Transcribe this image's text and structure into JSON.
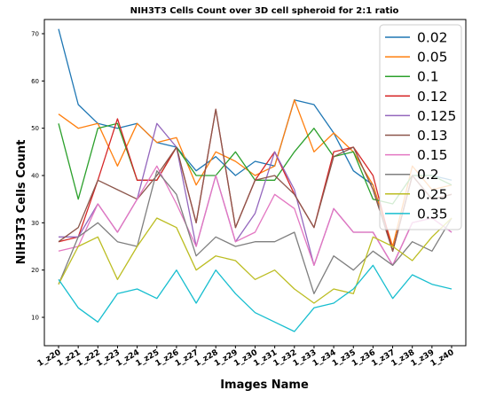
{
  "chart_data": {
    "type": "line",
    "title": "NIH3T3 Cells Count over 3D cell spheroid for 2:1 ratio",
    "xlabel": "Images Name",
    "ylabel": "NIH3T3 Cells Count",
    "categories": [
      "1_z20",
      "1_z21",
      "1_z22",
      "1_z23",
      "1_z24",
      "1_z25",
      "1_z26",
      "1_z27",
      "1_z28",
      "1_z29",
      "1_z30",
      "1_z31",
      "1_z32",
      "1_z33",
      "1_z34",
      "1_z35",
      "1_z36",
      "1_z37",
      "1_z38",
      "1_z39",
      "1_z40"
    ],
    "yticks": [
      10,
      20,
      30,
      40,
      50,
      60,
      70
    ],
    "ylim": [
      4,
      73
    ],
    "grid": false,
    "legend": "top-right",
    "series": [
      {
        "name": "0.02",
        "color": "#1f77b4",
        "values": [
          71,
          55,
          51,
          50,
          51,
          47,
          46,
          41,
          44,
          40,
          43,
          42,
          56,
          55,
          49,
          41,
          38,
          24,
          40,
          40,
          39
        ]
      },
      {
        "name": "0.05",
        "color": "#ff7f0e",
        "values": [
          53,
          50,
          51,
          42,
          51,
          47,
          48,
          38,
          45,
          43,
          40,
          42,
          56,
          45,
          49,
          45,
          38,
          25,
          42,
          37,
          38
        ]
      },
      {
        "name": "0.1",
        "color": "#2ca02c",
        "values": [
          51,
          35,
          50,
          51,
          39,
          39,
          46,
          40,
          40,
          45,
          39,
          39,
          45,
          50,
          44,
          45,
          35,
          34,
          40,
          40,
          38
        ]
      },
      {
        "name": "0.12",
        "color": "#d62728",
        "values": [
          26,
          27,
          39,
          52,
          39,
          39,
          46,
          30,
          54,
          29,
          39,
          45,
          36,
          29,
          45,
          46,
          40,
          24,
          40,
          35,
          36
        ]
      },
      {
        "name": "0.125",
        "color": "#9467bd",
        "values": [
          27,
          27,
          34,
          28,
          35,
          51,
          46,
          25,
          40,
          26,
          32,
          45,
          37,
          21,
          33,
          28,
          28,
          21,
          30,
          31,
          28
        ]
      },
      {
        "name": "0.13",
        "color": "#8c564b",
        "values": [
          26,
          29,
          39,
          37,
          35,
          40,
          46,
          30,
          54,
          29,
          39,
          40,
          36,
          29,
          44,
          46,
          37,
          24,
          40,
          35,
          36
        ]
      },
      {
        "name": "0.15",
        "color": "#e377c2",
        "values": [
          24,
          25,
          34,
          28,
          35,
          42,
          34,
          25,
          40,
          26,
          28,
          36,
          33,
          21,
          33,
          28,
          28,
          21,
          30,
          31,
          28
        ]
      },
      {
        "name": "0.2",
        "color": "#7f7f7f",
        "values": [
          17,
          27,
          30,
          26,
          25,
          41,
          36,
          23,
          27,
          25,
          26,
          26,
          28,
          15,
          23,
          20,
          24,
          21,
          26,
          24,
          31
        ]
      },
      {
        "name": "0.25",
        "color": "#bcbd22",
        "values": [
          17,
          25,
          27,
          18,
          25,
          31,
          29,
          20,
          23,
          22,
          18,
          20,
          16,
          13,
          16,
          15,
          27,
          25,
          22,
          27,
          31
        ]
      },
      {
        "name": "0.35",
        "color": "#17becf",
        "values": [
          18,
          12,
          9,
          15,
          16,
          14,
          20,
          13,
          20,
          15,
          11,
          9,
          7,
          12,
          13,
          16,
          21,
          14,
          19,
          17,
          16
        ]
      }
    ]
  }
}
